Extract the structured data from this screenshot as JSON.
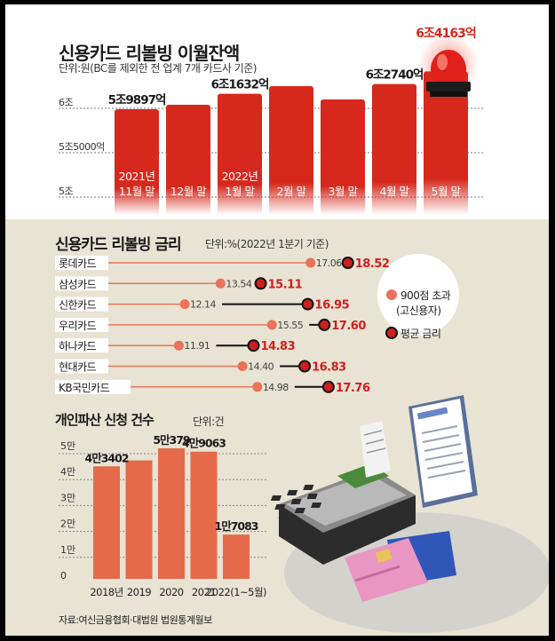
{
  "colors": {
    "revolving_bar": "#d6281c",
    "bankrupt_bar": "#e56a4a",
    "score900": "#e8735a",
    "average": "#cf1f1f",
    "bottom_bg": "#e8e3d3"
  },
  "chart_data": [
    {
      "type": "bar",
      "title": "신용카드 리볼빙 이월잔액",
      "subtitle": "단위:원(BC를 제외한 전 업계 7개 카드사 기준)",
      "categories": [
        "2021년\n11월 말",
        "12월 말",
        "2022년\n1월 말",
        "2월 말",
        "3월 말",
        "4월 말",
        "5월 말"
      ],
      "values": [
        59897,
        60400,
        61632,
        62500,
        61000,
        62740,
        64163
      ],
      "value_labels": [
        "5조9897억",
        "",
        "6조1632억",
        "",
        "",
        "6조2740억",
        "6조4163억"
      ],
      "y_ticks": [
        {
          "value": 50000,
          "label": "5조"
        },
        {
          "value": 55000,
          "label": "5조5000억"
        },
        {
          "value": 60000,
          "label": "6조"
        }
      ],
      "ylim": [
        50000,
        64200
      ]
    },
    {
      "type": "dot",
      "title": "신용카드 리볼빙 금리",
      "subtitle": "단위:%(2022년 1분기 기준)",
      "categories": [
        "롯데카드",
        "삼성카드",
        "신한카드",
        "우리카드",
        "하나카드",
        "현대카드",
        "KB국민카드"
      ],
      "series": [
        {
          "name": "900점 초과\n(고신용자)",
          "values": [
            17.06,
            13.54,
            12.14,
            15.55,
            11.91,
            14.4,
            14.98
          ],
          "labels": [
            "17.06",
            "13.54",
            "12.14",
            "15.55",
            "11.91",
            "14.40",
            "14.98"
          ]
        },
        {
          "name": "평균 금리",
          "values": [
            18.52,
            15.11,
            16.95,
            17.6,
            14.83,
            16.83,
            17.76
          ],
          "labels": [
            "18.52",
            "15.11",
            "16.95",
            "17.60",
            "14.83",
            "16.83",
            "17.76"
          ]
        }
      ],
      "xlim": [
        7,
        19.5
      ]
    },
    {
      "type": "bar",
      "title": "개인파산 신청 건수",
      "subtitle": "단위:건",
      "categories": [
        "2018년",
        "2019",
        "2020",
        "2021",
        "2022(1~5월)"
      ],
      "values": [
        43402,
        45700,
        50379,
        49063,
        17083
      ],
      "value_labels": [
        "4만3402",
        "",
        "5만379",
        "4만9063",
        "1만7083"
      ],
      "y_ticks": [
        {
          "value": 0,
          "label": "0"
        },
        {
          "value": 10000,
          "label": "1만"
        },
        {
          "value": 20000,
          "label": "2만"
        },
        {
          "value": 30000,
          "label": "3만"
        },
        {
          "value": 40000,
          "label": "4만"
        },
        {
          "value": 50000,
          "label": "5만"
        }
      ],
      "ylim": [
        0,
        52000
      ]
    }
  ],
  "source": "자료:여신금융협회·대법원 법원통계월보",
  "icons": {
    "siren": "siren-icon",
    "card_terminal": "card-terminal-illustration",
    "receipt": "receipt-illustration",
    "credit_cards": "credit-cards-illustration"
  }
}
